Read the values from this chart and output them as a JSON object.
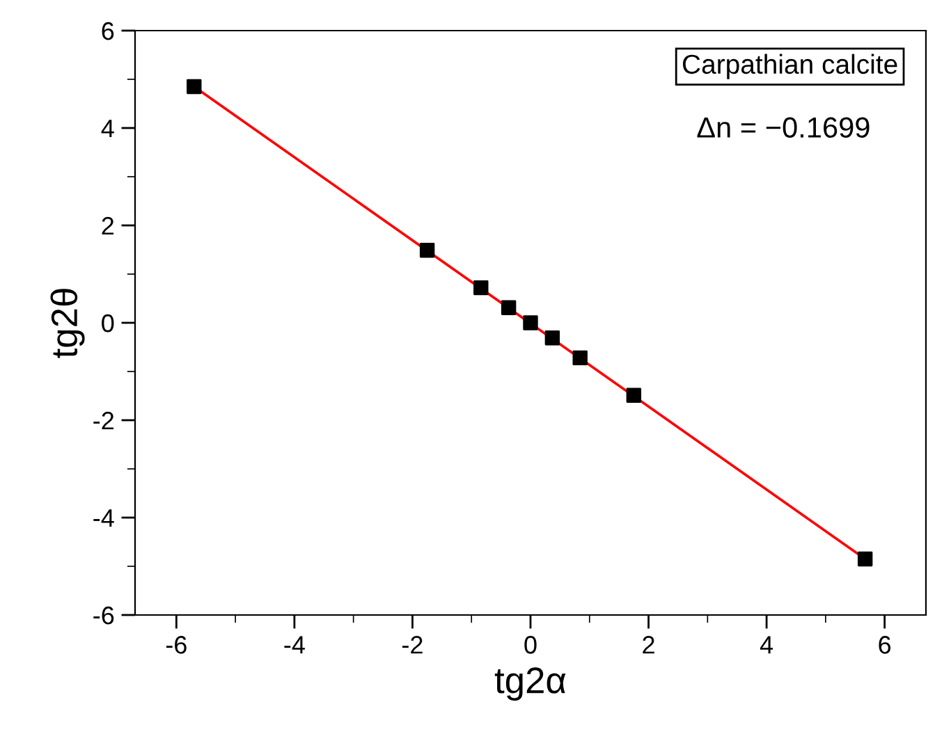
{
  "chart_data": {
    "type": "scatter",
    "xlabel": "tg2α",
    "ylabel": "tg2θ",
    "xlim": [
      -6.7,
      6.7
    ],
    "ylim": [
      -6,
      6
    ],
    "xticks": [
      -6,
      -4,
      -2,
      0,
      2,
      4,
      6
    ],
    "yticks": [
      -6,
      -4,
      -2,
      0,
      2,
      4,
      6
    ],
    "grid": false,
    "legend": false,
    "x": [
      -5.7,
      -1.75,
      -0.84,
      -0.37,
      0,
      0.37,
      0.84,
      1.75,
      5.67
    ],
    "series": [
      {
        "marker": "square",
        "color": "#000000",
        "values": [
          4.85,
          1.49,
          0.72,
          0.31,
          0,
          -0.31,
          -0.72,
          -1.49,
          -4.85
        ]
      },
      {
        "type": "line",
        "color": "#ff0000",
        "x": [
          -5.7,
          5.67
        ],
        "values": [
          4.85,
          -4.85
        ]
      }
    ],
    "annotations": [
      "Carpathian calcite",
      "Δn = −0.1699"
    ]
  }
}
